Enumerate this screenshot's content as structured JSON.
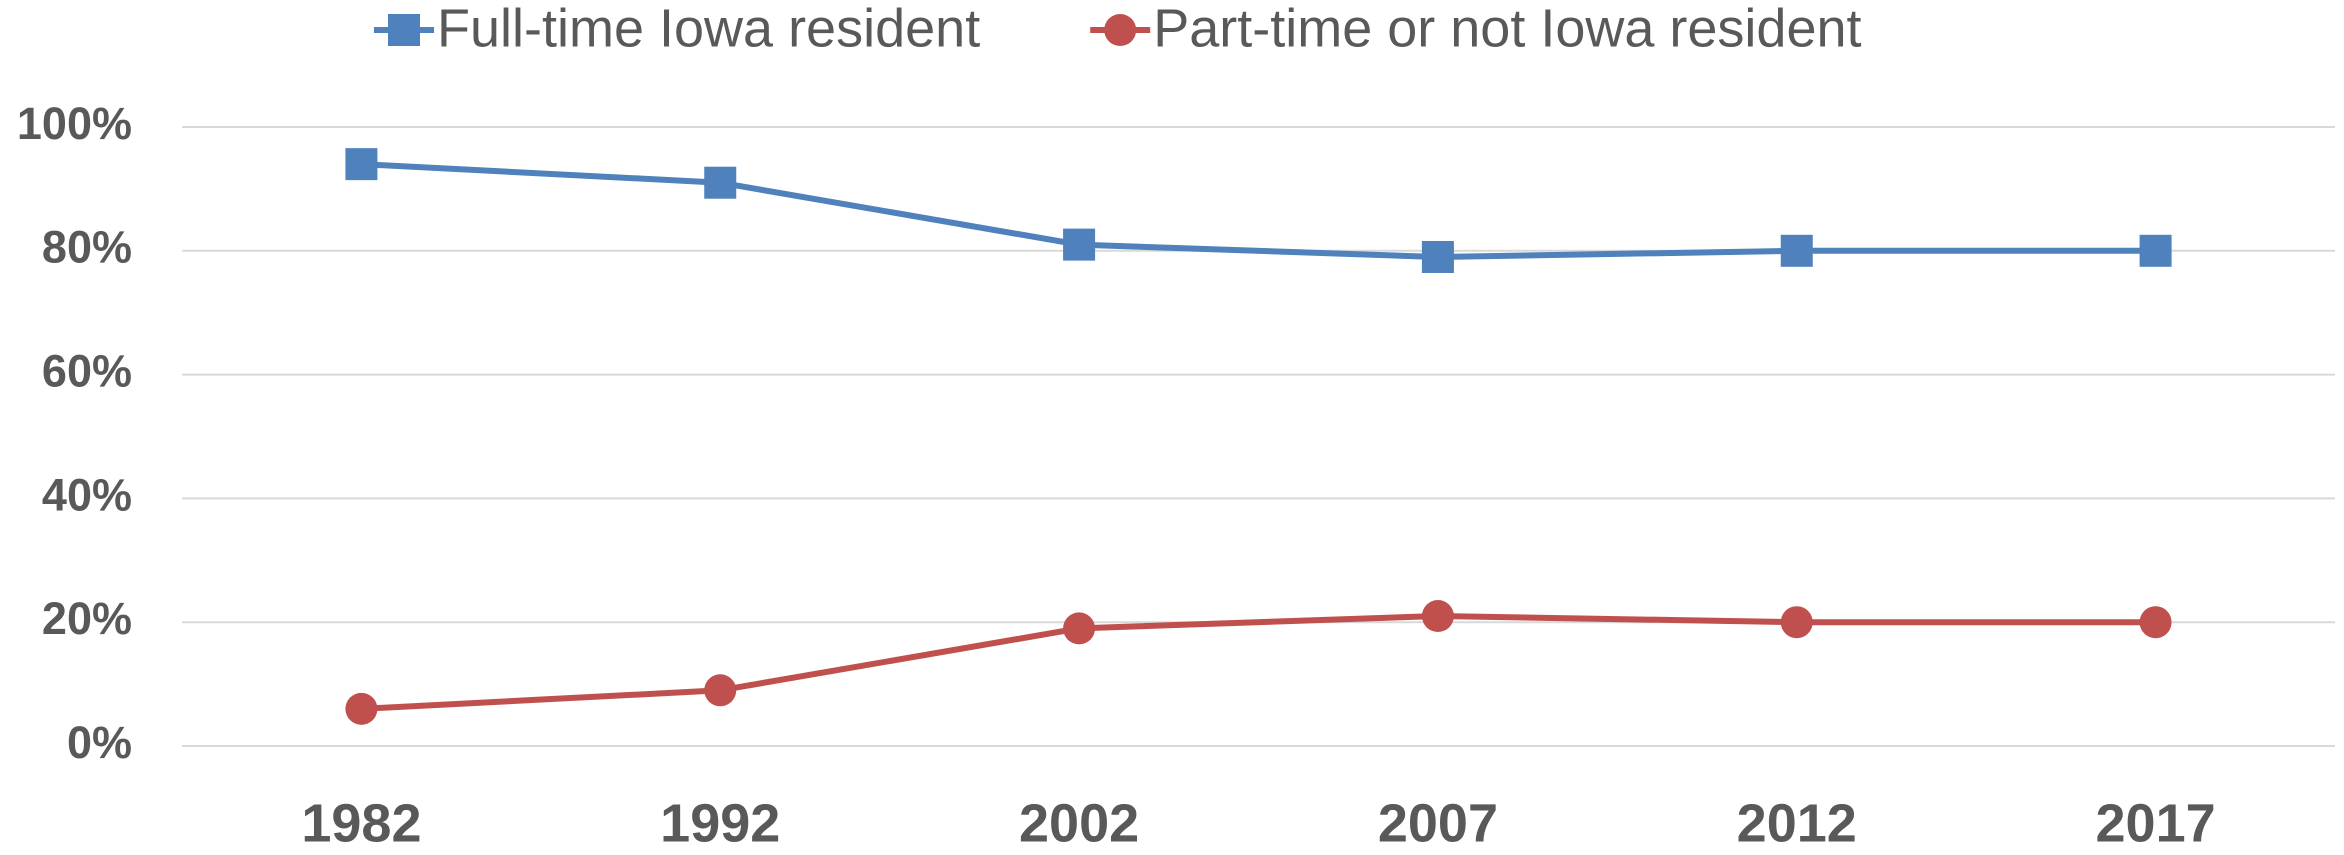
{
  "chart_data": {
    "type": "line",
    "categories": [
      "1982",
      "1992",
      "2002",
      "2007",
      "2012",
      "2017"
    ],
    "series": [
      {
        "name": "Full-time Iowa resident",
        "color": "#4f81bd",
        "marker": "square",
        "values": [
          94,
          91,
          81,
          79,
          80,
          80
        ]
      },
      {
        "name": "Part-time or not Iowa resident",
        "color": "#c0504d",
        "marker": "circle",
        "values": [
          6,
          9,
          19,
          21,
          20,
          20
        ]
      }
    ],
    "ylim": [
      0,
      100
    ],
    "yticks": [
      {
        "value": 0,
        "label": "0%"
      },
      {
        "value": 20,
        "label": "20%"
      },
      {
        "value": 40,
        "label": "40%"
      },
      {
        "value": 60,
        "label": "60%"
      },
      {
        "value": 80,
        "label": "80%"
      },
      {
        "value": 100,
        "label": "100%"
      }
    ],
    "grid": true,
    "legend": "top"
  }
}
